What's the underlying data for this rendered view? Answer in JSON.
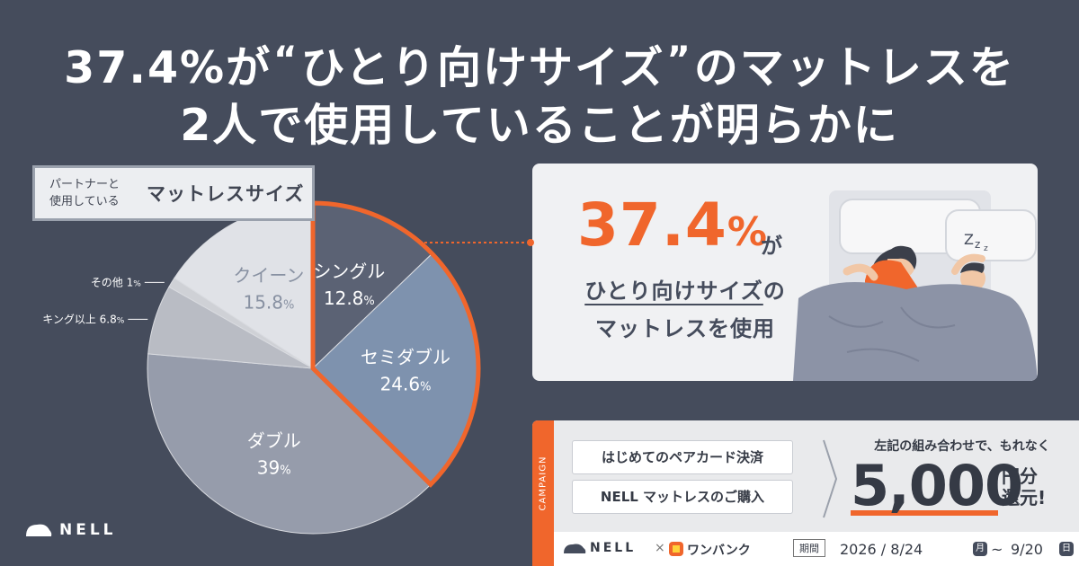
{
  "headline": {
    "line1_pre": "37.4%が",
    "line1_quote_open": "“",
    "line1_mid": "ひとり向けサイズ",
    "line1_quote_close": "”",
    "line1_post": "のマットレスを",
    "line2": "2人で使用していることが明らかに"
  },
  "legend": {
    "small_line1": "パートナーと",
    "small_line2": "使用している",
    "big": "マットレスサイズ"
  },
  "chart_data": {
    "type": "pie",
    "title": "パートナーと使用しているマットレスサイズ",
    "unit": "%",
    "slices": [
      {
        "label": "シングル",
        "value": 12.8,
        "display": "12.8",
        "color": "#5b6274",
        "text_color": "#ffffff",
        "highlight": true
      },
      {
        "label": "セミダブル",
        "value": 24.6,
        "display": "24.6",
        "color": "#7e92ae",
        "text_color": "#ffffff",
        "highlight": true
      },
      {
        "label": "ダブル",
        "value": 39,
        "display": "39",
        "color": "#969cab",
        "text_color": "#ffffff",
        "highlight": false
      },
      {
        "label": "キング以上",
        "value": 6.8,
        "display": "6.8",
        "color": "#b9bcc4",
        "text_color": "#454c5c",
        "highlight": false,
        "outside": true
      },
      {
        "label": "その他",
        "value": 1,
        "display": "1",
        "color": "#cfd1d6",
        "text_color": "#454c5c",
        "highlight": false,
        "outside": true
      },
      {
        "label": "クイーン",
        "value": 15.8,
        "display": "15.8",
        "color": "#e0e2e7",
        "text_color": "#8891a2",
        "highlight": false
      }
    ],
    "highlight_color": "#f0662c"
  },
  "callout": {
    "percent": "37.4",
    "percent_unit": "%",
    "ga": "が",
    "line2_underlined": "ひとり向けサイズ",
    "line2_rest": "の",
    "line3": "マットレスを使用"
  },
  "campaign": {
    "tab_label": "CAMPAIGN",
    "box1": "はじめてのペアカード決済",
    "box2": "NELL マットレスのご購入",
    "lead": "左記の組み合わせで、もれなく",
    "amount": "5,000",
    "unit_line1": "円分",
    "unit_line2": "還元!",
    "footer": {
      "nell": "NELL",
      "x": "×",
      "partner": "ワンバンク",
      "period_label": "期間",
      "start": "2026 / 8/24",
      "start_day": "月",
      "tilde": "~",
      "end": "9/20",
      "end_day": "日"
    }
  },
  "brand": {
    "name": "NELL"
  },
  "colors": {
    "background": "#454c5c",
    "accent": "#f0662c"
  }
}
